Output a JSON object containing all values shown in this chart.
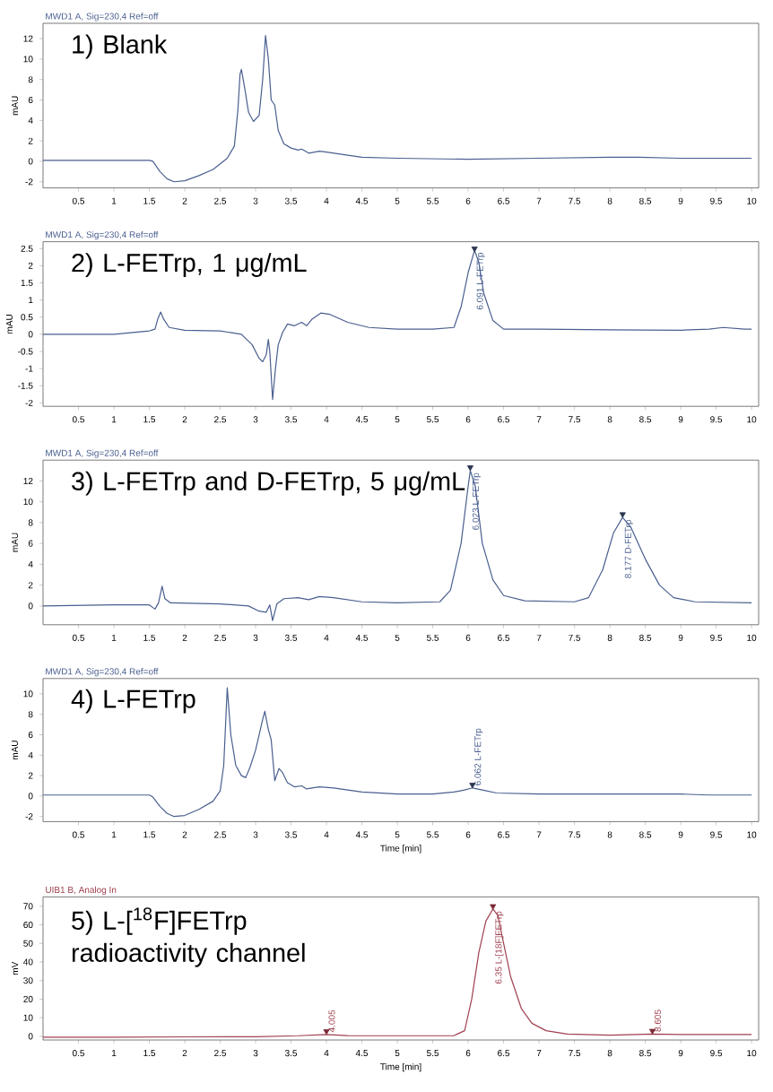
{
  "chart_data": [
    {
      "type": "line",
      "title": "1) Blank",
      "subtitle": "MWD1 A, Sig=230,4 Ref=off",
      "ylabel": "mAU",
      "xlim": [
        0,
        10.1
      ],
      "ylim": [
        -2.6,
        13.5
      ],
      "xticks": [
        0.5,
        1,
        1.5,
        2,
        2.5,
        3,
        3.5,
        4,
        4.5,
        5,
        5.5,
        6,
        6.5,
        7,
        7.5,
        8,
        8.5,
        9,
        9.5,
        10
      ],
      "yticks": [
        -2,
        0,
        2,
        4,
        6,
        8,
        10,
        12
      ],
      "series": [
        {
          "color": "#4a5f8f",
          "x": [
            0,
            1.5,
            1.55,
            1.65,
            1.75,
            1.85,
            2.0,
            2.2,
            2.4,
            2.6,
            2.7,
            2.75,
            2.78,
            2.8,
            2.85,
            2.9,
            2.97,
            3.05,
            3.1,
            3.14,
            3.18,
            3.22,
            3.27,
            3.32,
            3.4,
            3.5,
            3.6,
            3.65,
            3.75,
            3.9,
            4.0,
            4.3,
            4.5,
            5,
            6,
            7,
            8,
            8.4,
            9,
            10
          ],
          "values": [
            0.1,
            0.1,
            0.0,
            -1.0,
            -1.7,
            -2.0,
            -1.9,
            -1.4,
            -0.8,
            0.3,
            1.5,
            5,
            8.5,
            9.0,
            7,
            4.8,
            3.9,
            4.5,
            8,
            12.3,
            10,
            6,
            5.5,
            3,
            1.7,
            1.3,
            1.1,
            1.2,
            0.8,
            1.0,
            0.9,
            0.6,
            0.4,
            0.3,
            0.2,
            0.3,
            0.4,
            0.4,
            0.3,
            0.3
          ]
        }
      ]
    },
    {
      "type": "line",
      "title": "2) L-FETrp, 1 μg/mL",
      "subtitle": "MWD1 A, Sig=230,4 Ref=off",
      "ylabel": "mAU",
      "xlim": [
        0,
        10.1
      ],
      "ylim": [
        -2.1,
        2.7
      ],
      "xticks": [
        0.5,
        1,
        1.5,
        2,
        2.5,
        3,
        3.5,
        4,
        4.5,
        5,
        5.5,
        6,
        6.5,
        7,
        7.5,
        8,
        8.5,
        9,
        9.5,
        10
      ],
      "yticks": [
        -2,
        -1.5,
        -1,
        -0.5,
        0,
        0.5,
        1,
        1.5,
        2,
        2.5
      ],
      "annotations": [
        {
          "text": "6.091 L-FETrp",
          "x": 6.09,
          "y": 2.45
        }
      ],
      "series": [
        {
          "color": "#4a5f8f",
          "x": [
            0,
            1.0,
            1.5,
            1.58,
            1.62,
            1.66,
            1.7,
            1.78,
            2.0,
            2.5,
            2.8,
            2.95,
            3.05,
            3.1,
            3.15,
            3.18,
            3.2,
            3.24,
            3.28,
            3.32,
            3.38,
            3.45,
            3.55,
            3.65,
            3.72,
            3.8,
            3.92,
            4.05,
            4.3,
            4.6,
            5,
            5.5,
            5.8,
            5.9,
            6.0,
            6.09,
            6.15,
            6.22,
            6.35,
            6.5,
            7,
            8,
            9,
            9.4,
            9.6,
            9.9,
            10
          ],
          "values": [
            0.0,
            0.0,
            0.1,
            0.15,
            0.45,
            0.65,
            0.45,
            0.2,
            0.12,
            0.1,
            0.0,
            -0.3,
            -0.7,
            -0.8,
            -0.6,
            -0.15,
            -0.5,
            -1.9,
            -1.0,
            -0.3,
            0.05,
            0.3,
            0.25,
            0.35,
            0.25,
            0.45,
            0.62,
            0.58,
            0.35,
            0.2,
            0.15,
            0.15,
            0.2,
            0.8,
            1.8,
            2.45,
            2.1,
            1.2,
            0.4,
            0.15,
            0.15,
            0.13,
            0.12,
            0.15,
            0.2,
            0.15,
            0.15
          ]
        },
        {
          "type": "scatter",
          "marker": "triangle",
          "color": "#2a3550",
          "x": [
            6.09
          ],
          "values": [
            2.5
          ]
        }
      ]
    },
    {
      "type": "line",
      "title": "3) L-FETrp and D-FETrp, 5 μg/mL",
      "subtitle": "MWD1 A, Sig=230,4 Ref=off",
      "ylabel": "mAU",
      "xlim": [
        0,
        10.1
      ],
      "ylim": [
        -1.8,
        14
      ],
      "xticks": [
        0.5,
        1,
        1.5,
        2,
        2.5,
        3,
        3.5,
        4,
        4.5,
        5,
        5.5,
        6,
        6.5,
        7,
        7.5,
        8,
        8.5,
        9,
        9.5,
        10
      ],
      "yticks": [
        0,
        2,
        4,
        6,
        8,
        10,
        12
      ],
      "annotations": [
        {
          "text": "6.023 L-FETrp",
          "x": 6.03,
          "y": 13
        },
        {
          "text": "8.177 D-FETrp",
          "x": 8.18,
          "y": 8.5
        }
      ],
      "series": [
        {
          "color": "#4a5f8f",
          "x": [
            0,
            1.0,
            1.5,
            1.58,
            1.63,
            1.68,
            1.72,
            1.8,
            2.5,
            2.9,
            3.05,
            3.15,
            3.2,
            3.24,
            3.3,
            3.4,
            3.6,
            3.75,
            3.9,
            4.1,
            4.5,
            5,
            5.6,
            5.75,
            5.9,
            6.0,
            6.03,
            6.1,
            6.2,
            6.35,
            6.5,
            6.8,
            7.5,
            7.7,
            7.9,
            8.05,
            8.18,
            8.3,
            8.5,
            8.7,
            8.9,
            9.2,
            10
          ],
          "values": [
            0,
            0.1,
            0.1,
            -0.3,
            0.3,
            1.9,
            0.7,
            0.3,
            0.2,
            0.0,
            -0.5,
            -0.6,
            0.1,
            -1.4,
            0.2,
            0.7,
            0.8,
            0.6,
            0.9,
            0.8,
            0.4,
            0.3,
            0.4,
            1.5,
            6,
            11.5,
            13,
            11.5,
            6,
            2.5,
            1.0,
            0.5,
            0.4,
            0.8,
            3.5,
            7,
            8.5,
            7.5,
            4.5,
            2,
            0.8,
            0.4,
            0.3
          ]
        },
        {
          "type": "scatter",
          "marker": "triangle",
          "color": "#2a3550",
          "x": [
            6.03,
            8.18
          ],
          "values": [
            13.3,
            8.8
          ]
        }
      ]
    },
    {
      "type": "line",
      "title": "4) L-FETrp",
      "subtitle": "MWD1 A, Sig=230,4 Ref=off",
      "xlabel": "Time [min]",
      "ylabel": "mAU",
      "xlim": [
        0,
        10.1
      ],
      "ylim": [
        -2.5,
        11.5
      ],
      "xticks": [
        0.5,
        1,
        1.5,
        2,
        2.5,
        3,
        3.5,
        4,
        4.5,
        5,
        5.5,
        6,
        6.5,
        7,
        7.5,
        8,
        8.5,
        9,
        9.5,
        10
      ],
      "yticks": [
        -2,
        0,
        2,
        4,
        6,
        8,
        10
      ],
      "annotations": [
        {
          "text": "6.062 L-FETrp",
          "x": 6.06,
          "y": 0.8
        }
      ],
      "series": [
        {
          "color": "#4a5f8f",
          "x": [
            0,
            1.5,
            1.55,
            1.65,
            1.75,
            1.85,
            2.0,
            2.2,
            2.4,
            2.5,
            2.55,
            2.6,
            2.65,
            2.72,
            2.8,
            2.86,
            2.92,
            3.0,
            3.1,
            3.13,
            3.18,
            3.22,
            3.27,
            3.33,
            3.38,
            3.45,
            3.55,
            3.65,
            3.72,
            3.9,
            4.1,
            4.5,
            5,
            5.5,
            5.8,
            5.95,
            6.06,
            6.2,
            6.4,
            7,
            8,
            9,
            9.4,
            10
          ],
          "values": [
            0.1,
            0.1,
            -0.1,
            -1.0,
            -1.7,
            -2.0,
            -1.9,
            -1.3,
            -0.5,
            0.5,
            3,
            10.6,
            6,
            3,
            2.0,
            1.8,
            2.8,
            4.5,
            7.5,
            8.3,
            6.5,
            5.5,
            1.5,
            2.7,
            2.3,
            1.3,
            0.9,
            1.0,
            0.7,
            0.9,
            0.8,
            0.4,
            0.2,
            0.2,
            0.4,
            0.6,
            0.8,
            0.6,
            0.3,
            0.2,
            0.2,
            0.2,
            0.1,
            0.1
          ]
        },
        {
          "type": "scatter",
          "marker": "triangle",
          "color": "#2a3550",
          "x": [
            6.06
          ],
          "values": [
            1.1
          ]
        }
      ]
    },
    {
      "type": "line",
      "title": "5) L-[$^{18}$F]FETrp radioactivity channel",
      "subtitle": "UIB1 B, Analog In",
      "xlabel": "Time [min]",
      "ylabel": "mV",
      "xlim": [
        0,
        10.1
      ],
      "ylim": [
        -2,
        75
      ],
      "xticks": [
        0.5,
        1,
        1.5,
        2,
        2.5,
        3,
        3.5,
        4,
        4.5,
        5,
        5.5,
        6,
        6.5,
        7,
        7.5,
        8,
        8.5,
        9,
        9.5,
        10
      ],
      "yticks": [
        0,
        10,
        20,
        30,
        40,
        50,
        60,
        70
      ],
      "annotations": [
        {
          "text": "4.005",
          "x": 4.0,
          "y": 1.0
        },
        {
          "text": "6.35 L-[18F]FETrp",
          "x": 6.35,
          "y": 68.5
        },
        {
          "text": "8.605",
          "x": 8.6,
          "y": 1.2
        }
      ],
      "series": [
        {
          "color": "#a0404f",
          "x": [
            0,
            1,
            2,
            3,
            3.6,
            4.0,
            4.3,
            5,
            5.8,
            5.95,
            6.05,
            6.15,
            6.25,
            6.35,
            6.42,
            6.5,
            6.6,
            6.75,
            6.9,
            7.1,
            7.4,
            8,
            8.6,
            9,
            10
          ],
          "values": [
            -0.5,
            -0.5,
            -0.3,
            -0.2,
            0.3,
            1.0,
            0.4,
            0.3,
            0.4,
            3,
            20,
            45,
            62,
            68.5,
            65,
            50,
            32,
            15,
            7,
            3,
            1.2,
            0.6,
            1.2,
            1.0,
            1.0
          ]
        },
        {
          "type": "scatter",
          "marker": "triangle",
          "color": "#7a2a35",
          "x": [
            4.0,
            6.35,
            8.6
          ],
          "values": [
            2.7,
            70,
            2.9
          ]
        }
      ]
    }
  ]
}
